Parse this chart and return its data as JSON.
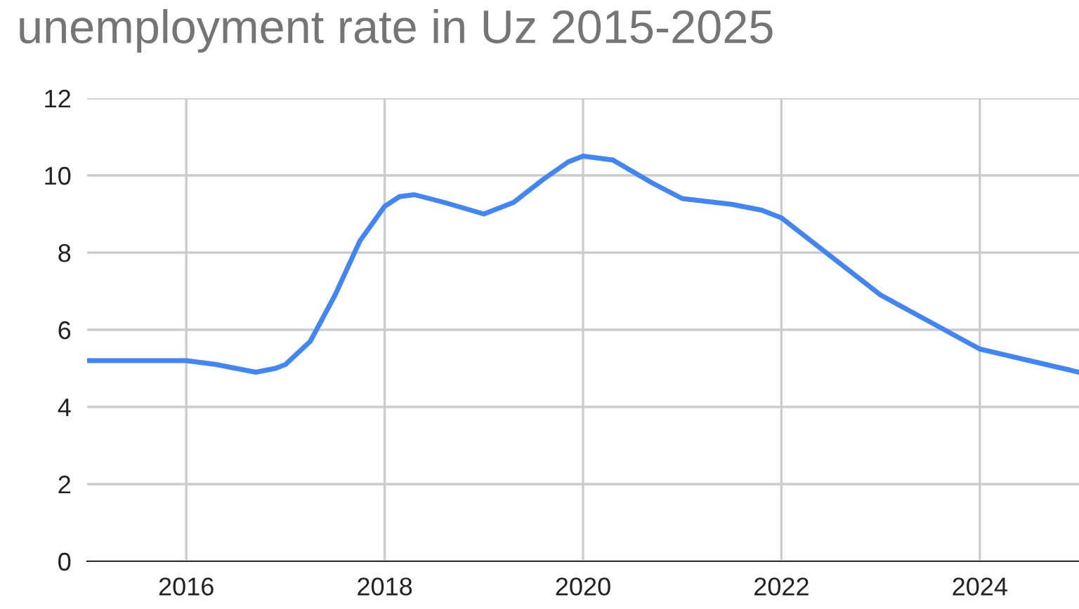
{
  "chart_data": {
    "type": "line",
    "title": "unemployment rate in Uz 2015-2025",
    "x": [
      2015,
      2015.5,
      2016,
      2016.3,
      2016.5,
      2016.7,
      2016.9,
      2017,
      2017.25,
      2017.5,
      2017.75,
      2018,
      2018.15,
      2018.3,
      2018.6,
      2019,
      2019.3,
      2019.6,
      2019.85,
      2020,
      2020.3,
      2020.7,
      2021,
      2021.5,
      2021.8,
      2022,
      2022.4,
      2022.8,
      2023,
      2023.5,
      2024,
      2024.5,
      2025
    ],
    "series": [
      {
        "color": "#4285f4",
        "values": [
          5.2,
          5.2,
          5.2,
          5.1,
          5.0,
          4.9,
          5.0,
          5.1,
          5.7,
          6.9,
          8.3,
          9.2,
          9.45,
          9.5,
          9.3,
          9.0,
          9.3,
          9.9,
          10.35,
          10.5,
          10.4,
          9.8,
          9.4,
          9.25,
          9.1,
          8.9,
          8.1,
          7.3,
          6.9,
          6.2,
          5.5,
          5.2,
          4.9
        ]
      }
    ],
    "xlim": [
      2015,
      2025
    ],
    "xticks": [
      2016,
      2018,
      2020,
      2022,
      2024
    ],
    "ylim": [
      0,
      12
    ],
    "yticks": [
      0,
      2,
      4,
      6,
      8,
      10,
      12
    ],
    "grid": true,
    "legend": false
  }
}
